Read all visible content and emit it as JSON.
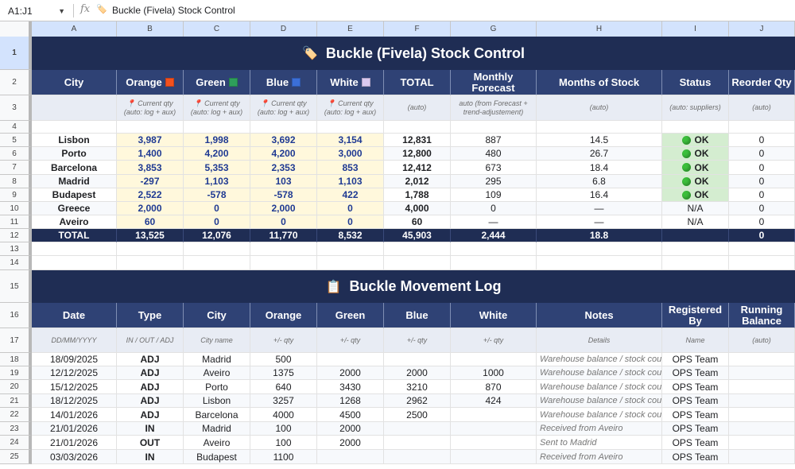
{
  "formula_bar": {
    "name_box": "A1:J1",
    "fx": "fx",
    "icon": "tag-icon",
    "value": "Buckle (Fivela) Stock Control"
  },
  "columns": [
    "A",
    "B",
    "C",
    "D",
    "E",
    "F",
    "G",
    "H",
    "I",
    "J"
  ],
  "rows": [
    "1",
    "2",
    "3",
    "4",
    "5",
    "6",
    "7",
    "8",
    "9",
    "10",
    "11",
    "12",
    "13",
    "14",
    "15",
    "16",
    "17",
    "18",
    "19",
    "20",
    "21",
    "22",
    "23",
    "24",
    "25"
  ],
  "stock": {
    "title": "Buckle (Fivela) Stock Control",
    "title_icon": "🏷️",
    "headers": [
      "City",
      "Orange",
      "Green",
      "Blue",
      "White",
      "TOTAL",
      "Monthly Forecast",
      "Months of Stock",
      "Status",
      "Reorder Qty"
    ],
    "swatch_colors": {
      "orange": "#f4511e",
      "green": "#2e9e5b",
      "blue": "#3b6fd8",
      "white": "#d9c8f0"
    },
    "sub_headers": [
      "",
      "📍 Current qty (auto: log + aux)",
      "📍 Current qty (auto: log + aux)",
      "📍 Current qty (auto: log + aux)",
      "📍 Current qty (auto: log + aux)",
      "(auto)",
      "auto (from Forecast + trend-adjustement)",
      "(auto)",
      "(auto: suppliers)",
      "(auto)"
    ],
    "rows": [
      {
        "city": "Lisbon",
        "orange": "3,987",
        "green": "1,998",
        "blue": "3,692",
        "white": "3,154",
        "total": "12,831",
        "forecast": "887",
        "months": "14.5",
        "status": "OK",
        "reorder": "0"
      },
      {
        "city": "Porto",
        "orange": "1,400",
        "green": "4,200",
        "blue": "4,200",
        "white": "3,000",
        "total": "12,800",
        "forecast": "480",
        "months": "26.7",
        "status": "OK",
        "reorder": "0"
      },
      {
        "city": "Barcelona",
        "orange": "3,853",
        "green": "5,353",
        "blue": "2,353",
        "white": "853",
        "total": "12,412",
        "forecast": "673",
        "months": "18.4",
        "status": "OK",
        "reorder": "0"
      },
      {
        "city": "Madrid",
        "orange": "-297",
        "green": "1,103",
        "blue": "103",
        "white": "1,103",
        "total": "2,012",
        "forecast": "295",
        "months": "6.8",
        "status": "OK",
        "reorder": "0"
      },
      {
        "city": "Budapest",
        "orange": "2,522",
        "green": "-578",
        "blue": "-578",
        "white": "422",
        "total": "1,788",
        "forecast": "109",
        "months": "16.4",
        "status": "OK",
        "reorder": "0"
      },
      {
        "city": "Greece",
        "orange": "2,000",
        "green": "0",
        "blue": "2,000",
        "white": "0",
        "total": "4,000",
        "forecast": "0",
        "months": "—",
        "status": "N/A",
        "reorder": "0"
      },
      {
        "city": "Aveiro",
        "orange": "60",
        "green": "0",
        "blue": "0",
        "white": "0",
        "total": "60",
        "forecast": "—",
        "months": "—",
        "status": "N/A",
        "reorder": "0"
      }
    ],
    "total_row": {
      "city": "TOTAL",
      "orange": "13,525",
      "green": "12,076",
      "blue": "11,770",
      "white": "8,532",
      "total": "45,903",
      "forecast": "2,444",
      "months": "18.8",
      "status": "",
      "reorder": "0"
    }
  },
  "log": {
    "title": "Buckle Movement Log",
    "title_icon": "📋",
    "headers": [
      "Date",
      "Type",
      "City",
      "Orange",
      "Green",
      "Blue",
      "White",
      "Notes",
      "Registered By",
      "Running Balance"
    ],
    "sub_headers": [
      "DD/MM/YYYY",
      "IN / OUT / ADJ",
      "City name",
      "+/- qty",
      "+/- qty",
      "+/- qty",
      "+/- qty",
      "Details",
      "Name",
      "(auto)"
    ],
    "rows": [
      {
        "date": "18/09/2025",
        "type": "ADJ",
        "city": "Madrid",
        "orange": "500",
        "green": "",
        "blue": "",
        "white": "",
        "notes": "Warehouse balance / stock count",
        "by": "OPS Team",
        "bal": ""
      },
      {
        "date": "12/12/2025",
        "type": "ADJ",
        "city": "Aveiro",
        "orange": "1375",
        "green": "2000",
        "blue": "2000",
        "white": "1000",
        "notes": "Warehouse balance / stock count",
        "by": "OPS Team",
        "bal": ""
      },
      {
        "date": "15/12/2025",
        "type": "ADJ",
        "city": "Porto",
        "orange": "640",
        "green": "3430",
        "blue": "3210",
        "white": "870",
        "notes": "Warehouse balance / stock count",
        "by": "OPS Team",
        "bal": ""
      },
      {
        "date": "18/12/2025",
        "type": "ADJ",
        "city": "Lisbon",
        "orange": "3257",
        "green": "1268",
        "blue": "2962",
        "white": "424",
        "notes": "Warehouse balance / stock count",
        "by": "OPS Team",
        "bal": ""
      },
      {
        "date": "14/01/2026",
        "type": "ADJ",
        "city": "Barcelona",
        "orange": "4000",
        "green": "4500",
        "blue": "2500",
        "white": "",
        "notes": "Warehouse balance / stock count",
        "by": "OPS Team",
        "bal": ""
      },
      {
        "date": "21/01/2026",
        "type": "IN",
        "city": "Madrid",
        "orange": "100",
        "green": "2000",
        "blue": "",
        "white": "",
        "notes": "Received from Aveiro",
        "by": "OPS Team",
        "bal": ""
      },
      {
        "date": "21/01/2026",
        "type": "OUT",
        "city": "Aveiro",
        "orange": "100",
        "green": "2000",
        "blue": "",
        "white": "",
        "notes": "Sent to Madrid",
        "by": "OPS Team",
        "bal": ""
      },
      {
        "date": "03/03/2026",
        "type": "IN",
        "city": "Budapest",
        "orange": "1100",
        "green": "",
        "blue": "",
        "white": "",
        "notes": "Received from Aveiro",
        "by": "OPS Team",
        "bal": ""
      }
    ]
  }
}
